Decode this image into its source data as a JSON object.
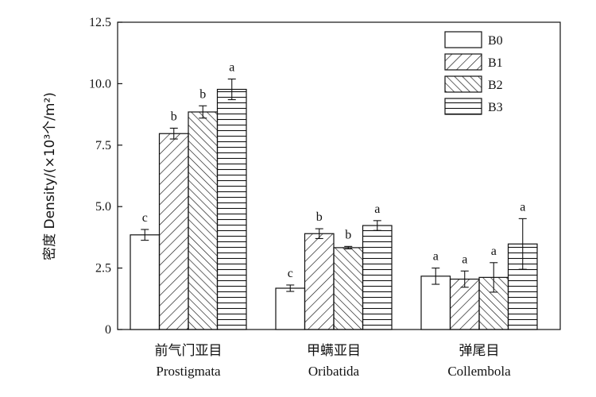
{
  "chart_data": {
    "type": "bar",
    "title": "",
    "ylabel": "密度 Density/(×10³个/m²)",
    "xlabel": "",
    "ylim": [
      0,
      12.5
    ],
    "yticks": [
      0,
      2.5,
      5.0,
      7.5,
      10.0,
      12.5
    ],
    "ytick_labels": [
      "0",
      "2.5",
      "5.0",
      "7.5",
      "10.0",
      "12.5"
    ],
    "grid": false,
    "legend_position": "top-right",
    "categories": [
      {
        "cn": "前气门亚目",
        "en": "Prostigmata"
      },
      {
        "cn": "甲螨亚目",
        "en": "Oribatida"
      },
      {
        "cn": "弹尾目",
        "en": "Collembola"
      }
    ],
    "series": [
      {
        "name": "B0",
        "pattern": "none",
        "values": [
          3.85,
          1.68,
          2.17
        ],
        "errors": [
          0.22,
          0.13,
          0.33
        ],
        "labels": [
          "c",
          "c",
          "a"
        ]
      },
      {
        "name": "B1",
        "pattern": "diag-forward",
        "values": [
          7.97,
          3.9,
          2.05
        ],
        "errors": [
          0.22,
          0.2,
          0.33
        ],
        "labels": [
          "b",
          "b",
          "a"
        ]
      },
      {
        "name": "B2",
        "pattern": "diag-backward",
        "values": [
          8.85,
          3.33,
          2.12
        ],
        "errors": [
          0.25,
          0.05,
          0.6
        ],
        "labels": [
          "b",
          "b",
          "a"
        ]
      },
      {
        "name": "B3",
        "pattern": "horizontal",
        "values": [
          9.77,
          4.23,
          3.48
        ],
        "errors": [
          0.42,
          0.2,
          1.03
        ],
        "labels": [
          "a",
          "a",
          "a"
        ]
      }
    ]
  }
}
